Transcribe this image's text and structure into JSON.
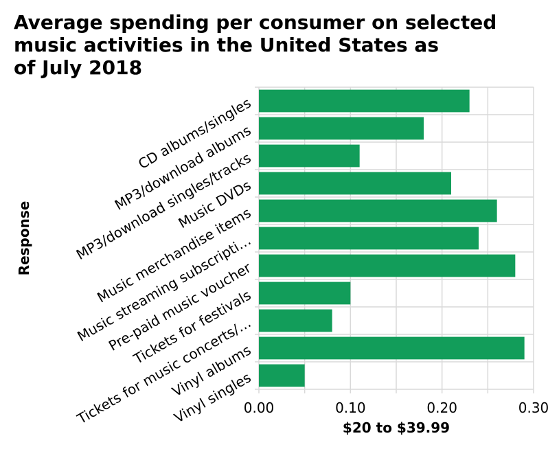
{
  "chart_data": {
    "type": "bar",
    "orientation": "horizontal",
    "title_lines": [
      "Average spending per consumer on selected",
      "music activities in the United States as",
      "of July 2018"
    ],
    "xlabel": "$20 to $39.99",
    "ylabel": "Response",
    "xlim": [
      0,
      0.3
    ],
    "xticks": [
      "0.00",
      "0.10",
      "0.20",
      "0.30"
    ],
    "xtick_values": [
      0,
      0.1,
      0.2,
      0.3
    ],
    "categories": [
      "CD albums/singles",
      "MP3/download albums",
      "MP3/download singles/tracks",
      "Music DVDs",
      "Music merchandise items",
      "Music streaming subscripti…",
      "Pre-paid music voucher",
      "Tickets for festivals",
      "Tickets for music concerts/…",
      "Vinyl albums",
      "Vinyl singles"
    ],
    "values": [
      0.23,
      0.18,
      0.11,
      0.21,
      0.26,
      0.24,
      0.28,
      0.1,
      0.08,
      0.29,
      0.05
    ],
    "grid": true,
    "bar_color": "#129d5a"
  }
}
